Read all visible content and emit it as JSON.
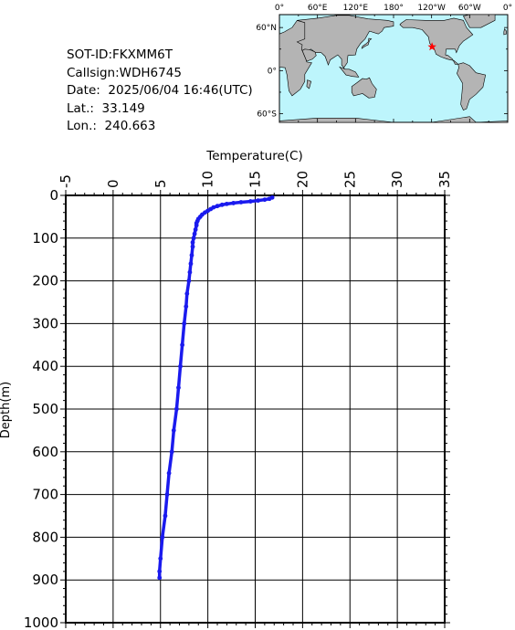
{
  "info": {
    "sot_id": "SOT-ID:FKXMM6T",
    "callsign": "Callsign:WDH6745",
    "date": "Date:  2025/06/04 16:46(UTC)",
    "lat": "Lat.:  33.149",
    "lon": "Lon.:  240.663"
  },
  "map": {
    "lon_labels": [
      "0°",
      "60°E",
      "120°E",
      "180°",
      "120°W",
      "60°W",
      "0°"
    ],
    "lat_labels": [
      "60°N",
      "0°",
      "60°S"
    ],
    "ocean_color": "#bdf5fc",
    "land_color": "#b4b4b4",
    "marker_color": "#ff0000",
    "marker": {
      "lat": 33.149,
      "lon": 240.663
    }
  },
  "chart_data": {
    "type": "line",
    "xlabel": "Temperature(C)",
    "ylabel": "Depth(m)",
    "xlim": [
      -5,
      35
    ],
    "ylim": [
      0,
      1000
    ],
    "x_ticks": [
      -5,
      0,
      5,
      10,
      15,
      20,
      25,
      30,
      35
    ],
    "y_ticks": [
      0,
      100,
      200,
      300,
      400,
      500,
      600,
      700,
      800,
      900,
      1000
    ],
    "grid": true,
    "color": "#1a1aee",
    "series": [
      {
        "depth": [
          5,
          8,
          10,
          12,
          14,
          16,
          18,
          20,
          22,
          25,
          28,
          32,
          36,
          40,
          45,
          50,
          55,
          60,
          65,
          70,
          80,
          90,
          100,
          110,
          120,
          140,
          160,
          180,
          200,
          230,
          260,
          300,
          350,
          400,
          450,
          500,
          550,
          600,
          650,
          700,
          750,
          800,
          850,
          880,
          895
        ],
        "temperature": [
          16.8,
          16.5,
          16.0,
          15.3,
          14.5,
          13.5,
          12.7,
          12.0,
          11.5,
          11.0,
          10.6,
          10.3,
          10.0,
          9.7,
          9.4,
          9.2,
          9.0,
          8.9,
          8.8,
          8.8,
          8.7,
          8.6,
          8.5,
          8.4,
          8.4,
          8.3,
          8.2,
          8.1,
          8.0,
          7.8,
          7.7,
          7.5,
          7.3,
          7.1,
          6.9,
          6.7,
          6.4,
          6.2,
          5.9,
          5.7,
          5.5,
          5.2,
          5.0,
          4.9,
          4.9
        ]
      }
    ]
  }
}
